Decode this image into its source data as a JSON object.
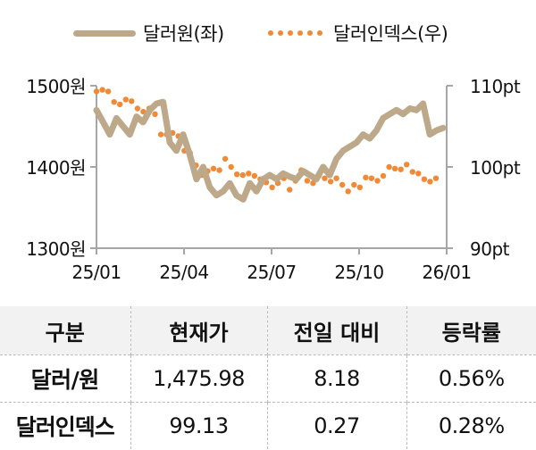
{
  "legend": {
    "series1_label": "달러원(좌)",
    "series2_label": "달러인덱스(우)"
  },
  "colors": {
    "krw_line": "#bda98a",
    "dxy_dots": "#f08a36",
    "axis": "#a6a6a6",
    "header_bg": "#f2f2f2"
  },
  "axes": {
    "left_ticks": [
      "1500원",
      "1400원",
      "1300원"
    ],
    "right_ticks": [
      "110pt",
      "100pt",
      "90pt"
    ],
    "x_ticks": [
      "25/01",
      "25/04",
      "25/07",
      "25/10",
      "26/01"
    ]
  },
  "chart_data": {
    "type": "line",
    "title": "",
    "xlabel": "",
    "ylabel": "",
    "x": [
      "25/01",
      "25/02",
      "25/03",
      "25/04",
      "25/05",
      "25/06",
      "25/07",
      "25/08",
      "25/09",
      "25/10",
      "25/11",
      "25/12",
      "26/01"
    ],
    "series": [
      {
        "name": "달러원(좌)",
        "axis": "left",
        "style": "thick-line",
        "ylim": [
          1300,
          1500
        ],
        "values": [
          1470,
          1455,
          1440,
          1460,
          1450,
          1440,
          1462,
          1455,
          1470,
          1478,
          1480,
          1430,
          1420,
          1440,
          1415,
          1385,
          1400,
          1375,
          1365,
          1370,
          1380,
          1365,
          1360,
          1380,
          1370,
          1385,
          1390,
          1385,
          1392,
          1388,
          1385,
          1395,
          1390,
          1385,
          1400,
          1390,
          1410,
          1420,
          1425,
          1430,
          1440,
          1435,
          1445,
          1460,
          1465,
          1470,
          1465,
          1472,
          1470,
          1478,
          1440,
          1445,
          1448
        ]
      },
      {
        "name": "달러인덱스(우)",
        "axis": "right",
        "style": "dots",
        "ylim": [
          90,
          110
        ],
        "values": [
          109.3,
          109.5,
          109.3,
          108.0,
          107.7,
          108.3,
          108.1,
          107.2,
          106.8,
          107.2,
          106.5,
          104.0,
          104.0,
          104.2,
          103.8,
          102.0,
          101.7,
          100.2,
          99.0,
          99.5,
          99.8,
          99.6,
          101.0,
          100.0,
          99.1,
          99.0,
          99.2,
          98.9,
          98.5,
          98.1,
          97.5,
          98.0,
          98.6,
          97.2,
          98.3,
          99.6,
          98.3,
          98.0,
          98.9,
          98.6,
          98.2,
          98.6,
          97.8,
          97.0,
          97.8,
          97.5,
          98.7,
          98.6,
          98.3,
          98.9,
          100.0,
          99.8,
          99.7,
          100.3,
          99.4,
          99.2,
          98.5,
          98.2,
          98.6
        ]
      }
    ],
    "left_ylim": [
      1300,
      1500
    ],
    "right_ylim": [
      90,
      110
    ],
    "grid": false,
    "legend_position": "top"
  },
  "table": {
    "headers": [
      "구분",
      "현재가",
      "전일 대비",
      "등락률"
    ],
    "rows": [
      [
        "달러/원",
        "1,475.98",
        "8.18",
        "0.56%"
      ],
      [
        "달러인덱스",
        "99.13",
        "0.27",
        "0.28%"
      ]
    ]
  }
}
